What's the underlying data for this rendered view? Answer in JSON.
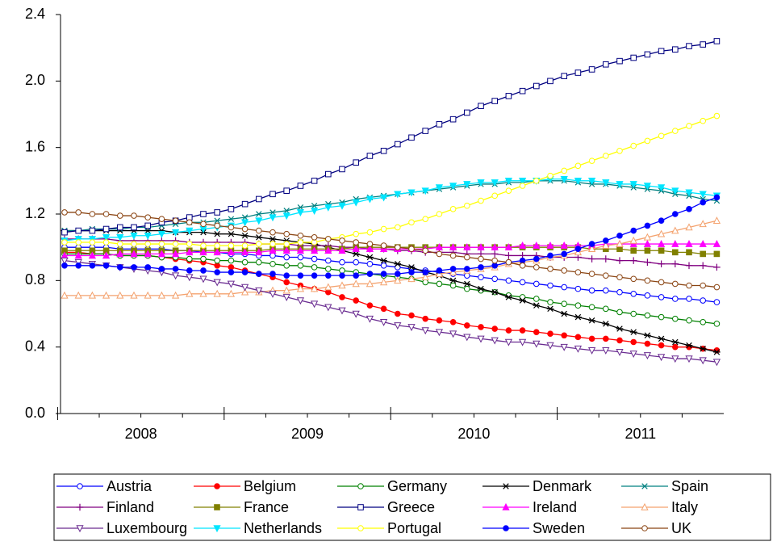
{
  "chart_data": {
    "type": "line",
    "categories": [
      null,
      null,
      null,
      null,
      null,
      null,
      "2008",
      null,
      null,
      null,
      null,
      null,
      null,
      null,
      null,
      null,
      null,
      null,
      "2009",
      null,
      null,
      null,
      null,
      null,
      null,
      null,
      null,
      null,
      null,
      null,
      "2010",
      null,
      null,
      null,
      null,
      null,
      null,
      null,
      null,
      null,
      null,
      null,
      "2011",
      null,
      null,
      null,
      null,
      null
    ],
    "ylim": [
      0,
      2.4
    ],
    "yticks": [
      {
        "value": 0,
        "label": "0.0"
      },
      0.4,
      0.8,
      1.2,
      1.6,
      {
        "value": 2,
        "label": "2.0"
      },
      2.4
    ],
    "grid": false,
    "legend": "bottom",
    "series": [
      {
        "name": "Austria",
        "color": "#0000ff",
        "marker": "circle-open",
        "values": [
          1.0,
          1.0,
          1.0,
          1.0,
          0.99,
          0.99,
          0.99,
          0.99,
          0.98,
          0.98,
          0.97,
          0.97,
          0.96,
          0.96,
          0.95,
          0.95,
          0.94,
          0.94,
          0.93,
          0.92,
          0.91,
          0.91,
          0.9,
          0.89,
          0.88,
          0.87,
          0.86,
          0.85,
          0.84,
          0.83,
          0.82,
          0.81,
          0.8,
          0.79,
          0.78,
          0.77,
          0.76,
          0.75,
          0.74,
          0.74,
          0.73,
          0.72,
          0.71,
          0.7,
          0.69,
          0.69,
          0.68,
          0.67
        ]
      },
      {
        "name": "Belgium",
        "color": "#ff0000",
        "marker": "circle-filled",
        "values": [
          0.97,
          0.97,
          0.96,
          0.96,
          0.95,
          0.95,
          0.95,
          0.94,
          0.93,
          0.92,
          0.91,
          0.89,
          0.88,
          0.86,
          0.84,
          0.82,
          0.79,
          0.77,
          0.75,
          0.73,
          0.7,
          0.68,
          0.65,
          0.63,
          0.6,
          0.59,
          0.57,
          0.56,
          0.55,
          0.53,
          0.52,
          0.51,
          0.5,
          0.5,
          0.49,
          0.48,
          0.47,
          0.46,
          0.45,
          0.45,
          0.44,
          0.43,
          0.42,
          0.41,
          0.4,
          0.4,
          0.39,
          0.38
        ]
      },
      {
        "name": "Germany",
        "color": "#008000",
        "marker": "circle-open",
        "values": [
          0.96,
          0.96,
          0.96,
          0.96,
          0.95,
          0.95,
          0.95,
          0.94,
          0.94,
          0.93,
          0.93,
          0.92,
          0.92,
          0.91,
          0.91,
          0.9,
          0.89,
          0.89,
          0.88,
          0.87,
          0.86,
          0.85,
          0.84,
          0.83,
          0.82,
          0.81,
          0.79,
          0.78,
          0.77,
          0.75,
          0.74,
          0.73,
          0.71,
          0.7,
          0.69,
          0.67,
          0.66,
          0.65,
          0.64,
          0.63,
          0.61,
          0.6,
          0.59,
          0.58,
          0.57,
          0.56,
          0.55,
          0.54
        ]
      },
      {
        "name": "Denmark",
        "color": "#000000",
        "marker": "star",
        "values": [
          1.1,
          1.1,
          1.1,
          1.1,
          1.1,
          1.1,
          1.1,
          1.1,
          1.09,
          1.09,
          1.09,
          1.08,
          1.08,
          1.07,
          1.06,
          1.05,
          1.04,
          1.03,
          1.02,
          1.0,
          0.98,
          0.96,
          0.94,
          0.92,
          0.9,
          0.88,
          0.85,
          0.83,
          0.8,
          0.78,
          0.75,
          0.73,
          0.7,
          0.68,
          0.65,
          0.63,
          0.6,
          0.58,
          0.56,
          0.54,
          0.51,
          0.49,
          0.47,
          0.45,
          0.43,
          0.41,
          0.39,
          0.37
        ]
      },
      {
        "name": "Spain",
        "color": "#008080",
        "marker": "cross",
        "values": [
          1.1,
          1.1,
          1.11,
          1.11,
          1.11,
          1.12,
          1.12,
          1.13,
          1.14,
          1.15,
          1.15,
          1.16,
          1.17,
          1.18,
          1.2,
          1.21,
          1.22,
          1.24,
          1.25,
          1.26,
          1.27,
          1.29,
          1.3,
          1.31,
          1.32,
          1.33,
          1.34,
          1.35,
          1.36,
          1.37,
          1.38,
          1.38,
          1.39,
          1.39,
          1.4,
          1.4,
          1.4,
          1.39,
          1.38,
          1.38,
          1.37,
          1.36,
          1.35,
          1.34,
          1.32,
          1.31,
          1.29,
          1.28
        ]
      },
      {
        "name": "Finland",
        "color": "#800080",
        "marker": "plus",
        "values": [
          1.05,
          1.05,
          1.05,
          1.05,
          1.04,
          1.04,
          1.04,
          1.04,
          1.04,
          1.03,
          1.03,
          1.03,
          1.03,
          1.03,
          1.02,
          1.02,
          1.02,
          1.01,
          1.01,
          1.01,
          1.0,
          1.0,
          0.99,
          0.99,
          0.98,
          0.98,
          0.97,
          0.97,
          0.97,
          0.96,
          0.96,
          0.96,
          0.95,
          0.95,
          0.95,
          0.94,
          0.94,
          0.94,
          0.93,
          0.93,
          0.92,
          0.92,
          0.91,
          0.9,
          0.9,
          0.89,
          0.89,
          0.88
        ]
      },
      {
        "name": "France",
        "color": "#808000",
        "marker": "square-filled",
        "values": [
          0.98,
          0.98,
          0.98,
          0.98,
          0.98,
          0.98,
          0.98,
          0.98,
          0.98,
          0.98,
          0.98,
          0.98,
          0.98,
          0.98,
          0.98,
          0.99,
          0.99,
          0.99,
          0.99,
          0.99,
          0.99,
          1.0,
          1.0,
          1.0,
          1.0,
          1.0,
          1.0,
          1.0,
          1.0,
          1.0,
          1.0,
          1.0,
          1.0,
          1.0,
          1.0,
          1.0,
          1.0,
          1.0,
          0.99,
          0.99,
          0.99,
          0.98,
          0.98,
          0.98,
          0.97,
          0.97,
          0.96,
          0.96
        ]
      },
      {
        "name": "Greece",
        "color": "#000080",
        "marker": "square-open",
        "values": [
          1.09,
          1.1,
          1.1,
          1.11,
          1.12,
          1.12,
          1.13,
          1.15,
          1.16,
          1.18,
          1.2,
          1.21,
          1.23,
          1.26,
          1.29,
          1.32,
          1.34,
          1.37,
          1.4,
          1.44,
          1.47,
          1.51,
          1.55,
          1.58,
          1.62,
          1.66,
          1.7,
          1.74,
          1.77,
          1.81,
          1.85,
          1.88,
          1.91,
          1.94,
          1.97,
          2.0,
          2.03,
          2.05,
          2.07,
          2.1,
          2.12,
          2.14,
          2.16,
          2.18,
          2.19,
          2.21,
          2.22,
          2.24
        ]
      },
      {
        "name": "Ireland",
        "color": "#ff00ff",
        "marker": "triangle-filled",
        "values": [
          0.95,
          0.95,
          0.95,
          0.95,
          0.96,
          0.96,
          0.96,
          0.96,
          0.96,
          0.97,
          0.97,
          0.97,
          0.97,
          0.97,
          0.97,
          0.98,
          0.98,
          0.98,
          0.98,
          0.98,
          0.98,
          0.99,
          0.99,
          0.99,
          0.99,
          0.99,
          0.99,
          1.0,
          1.0,
          1.0,
          1.0,
          1.0,
          1.0,
          1.01,
          1.01,
          1.01,
          1.01,
          1.01,
          1.01,
          1.02,
          1.02,
          1.02,
          1.02,
          1.02,
          1.02,
          1.02,
          1.02,
          1.02
        ]
      },
      {
        "name": "Italy",
        "color": "#f4a26e",
        "marker": "triangle-open",
        "values": [
          0.71,
          0.71,
          0.71,
          0.71,
          0.71,
          0.71,
          0.71,
          0.71,
          0.71,
          0.72,
          0.72,
          0.72,
          0.72,
          0.73,
          0.73,
          0.74,
          0.74,
          0.75,
          0.75,
          0.76,
          0.77,
          0.78,
          0.78,
          0.79,
          0.8,
          0.81,
          0.82,
          0.84,
          0.85,
          0.86,
          0.87,
          0.88,
          0.9,
          0.91,
          0.92,
          0.94,
          0.95,
          0.97,
          0.99,
          1.01,
          1.02,
          1.04,
          1.06,
          1.08,
          1.1,
          1.12,
          1.14,
          1.16
        ]
      },
      {
        "name": "Luxembourg",
        "color": "#6a2c91",
        "marker": "down-triangle-open",
        "values": [
          0.92,
          0.91,
          0.9,
          0.89,
          0.88,
          0.87,
          0.86,
          0.85,
          0.83,
          0.82,
          0.81,
          0.79,
          0.78,
          0.76,
          0.74,
          0.72,
          0.7,
          0.68,
          0.66,
          0.64,
          0.62,
          0.6,
          0.57,
          0.55,
          0.53,
          0.52,
          0.5,
          0.49,
          0.48,
          0.46,
          0.45,
          0.44,
          0.43,
          0.43,
          0.42,
          0.41,
          0.4,
          0.39,
          0.38,
          0.38,
          0.37,
          0.36,
          0.35,
          0.34,
          0.33,
          0.33,
          0.32,
          0.31
        ]
      },
      {
        "name": "Netherlands",
        "color": "#00e5ff",
        "marker": "down-triangle-filled",
        "values": [
          1.04,
          1.05,
          1.05,
          1.06,
          1.06,
          1.07,
          1.07,
          1.08,
          1.09,
          1.1,
          1.11,
          1.12,
          1.13,
          1.15,
          1.16,
          1.18,
          1.19,
          1.21,
          1.22,
          1.24,
          1.25,
          1.27,
          1.29,
          1.3,
          1.32,
          1.33,
          1.34,
          1.36,
          1.37,
          1.38,
          1.39,
          1.39,
          1.4,
          1.4,
          1.4,
          1.41,
          1.41,
          1.4,
          1.4,
          1.39,
          1.38,
          1.38,
          1.37,
          1.36,
          1.34,
          1.33,
          1.32,
          1.31
        ]
      },
      {
        "name": "Portugal",
        "color": "#ffff00",
        "marker": "circle-open",
        "values": [
          1.03,
          1.03,
          1.03,
          1.03,
          1.02,
          1.02,
          1.02,
          1.02,
          1.02,
          1.02,
          1.01,
          1.01,
          1.01,
          1.01,
          1.02,
          1.02,
          1.02,
          1.03,
          1.03,
          1.05,
          1.06,
          1.08,
          1.09,
          1.11,
          1.12,
          1.15,
          1.17,
          1.2,
          1.23,
          1.25,
          1.28,
          1.31,
          1.34,
          1.37,
          1.4,
          1.43,
          1.46,
          1.49,
          1.52,
          1.55,
          1.58,
          1.61,
          1.64,
          1.67,
          1.7,
          1.73,
          1.76,
          1.79
        ]
      },
      {
        "name": "Sweden",
        "color": "#0000ff",
        "marker": "circle-filled",
        "values": [
          0.89,
          0.89,
          0.89,
          0.89,
          0.88,
          0.88,
          0.88,
          0.87,
          0.87,
          0.86,
          0.86,
          0.85,
          0.85,
          0.85,
          0.84,
          0.84,
          0.83,
          0.83,
          0.83,
          0.83,
          0.83,
          0.83,
          0.84,
          0.84,
          0.84,
          0.85,
          0.85,
          0.86,
          0.87,
          0.87,
          0.88,
          0.89,
          0.91,
          0.92,
          0.93,
          0.95,
          0.96,
          0.99,
          1.02,
          1.04,
          1.07,
          1.1,
          1.13,
          1.16,
          1.2,
          1.23,
          1.27,
          1.3
        ]
      },
      {
        "name": "UK",
        "color": "#8b4513",
        "marker": "circle-open",
        "values": [
          1.21,
          1.21,
          1.2,
          1.2,
          1.19,
          1.19,
          1.18,
          1.17,
          1.16,
          1.15,
          1.14,
          1.13,
          1.12,
          1.11,
          1.1,
          1.09,
          1.08,
          1.07,
          1.06,
          1.05,
          1.04,
          1.03,
          1.02,
          1.01,
          1.0,
          0.99,
          0.98,
          0.96,
          0.95,
          0.94,
          0.93,
          0.92,
          0.91,
          0.89,
          0.88,
          0.87,
          0.86,
          0.85,
          0.84,
          0.83,
          0.82,
          0.81,
          0.8,
          0.79,
          0.78,
          0.77,
          0.77,
          0.76
        ]
      }
    ]
  }
}
